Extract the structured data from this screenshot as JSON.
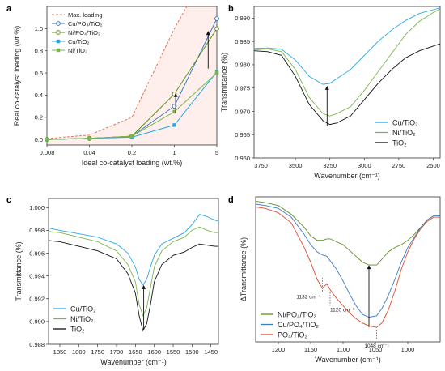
{
  "chart_data": [
    {
      "panel": "a",
      "type": "line",
      "xlabel": "Ideal co-catalyst loading (wt.%)",
      "ylabel": "Real co-catalyst loading (wt.%)",
      "x_scale": "log",
      "xlim": [
        0.008,
        5
      ],
      "ylim": [
        -0.05,
        1.2
      ],
      "xticks": [
        "0.008",
        "0.04",
        "0.2",
        "1",
        "5"
      ],
      "yticks": [
        "0.0",
        "0.2",
        "0.4",
        "0.6",
        "0.8",
        "1.0"
      ],
      "x": [
        0.008,
        0.04,
        0.2,
        1,
        5
      ],
      "series": [
        {
          "name": "Max. loading",
          "x": [
            0.008,
            0.04,
            0.2,
            1,
            1.6
          ],
          "values": [
            0.008,
            0.04,
            0.2,
            1.0,
            1.2
          ],
          "color": "#f07052",
          "style": "dashed",
          "marker": "none"
        },
        {
          "name": "Cu/PO₄/TiO₂",
          "values": [
            0.0,
            0.01,
            0.03,
            0.3,
            1.09
          ],
          "color": "#3a7cc7",
          "marker": "circle-open"
        },
        {
          "name": "Ni/PO₄/TiO₂",
          "values": [
            0.0,
            0.01,
            0.03,
            0.41,
            1.0
          ],
          "color": "#5f8f1f",
          "marker": "circle-open"
        },
        {
          "name": "Cu/TiO₂",
          "values": [
            0.0,
            0.01,
            0.02,
            0.13,
            0.61
          ],
          "color": "#2aa7e6",
          "marker": "square"
        },
        {
          "name": "Ni/TiO₂",
          "values": [
            0.0,
            0.01,
            0.03,
            0.25,
            0.6
          ],
          "color": "#7ab648",
          "marker": "square"
        }
      ],
      "legend": "top-left"
    },
    {
      "panel": "b",
      "type": "line",
      "xlabel": "Wavenumber (cm⁻¹)",
      "ylabel": "Transmittance (%)",
      "xlim": [
        3800,
        2450
      ],
      "ylim": [
        0.96,
        0.9925
      ],
      "xticks": [
        "3750",
        "3500",
        "3250",
        "3000",
        "2750",
        "2500"
      ],
      "yticks": [
        "0.960",
        "0.965",
        "0.970",
        "0.975",
        "0.980",
        "0.985",
        "0.990"
      ],
      "x": [
        3800,
        3700,
        3600,
        3500,
        3400,
        3300,
        3250,
        3200,
        3100,
        3000,
        2900,
        2800,
        2700,
        2600,
        2500,
        2450
      ],
      "series": [
        {
          "name": "Cu/TiO₂",
          "values": [
            0.9835,
            0.9836,
            0.9833,
            0.981,
            0.9775,
            0.9758,
            0.976,
            0.977,
            0.979,
            0.982,
            0.985,
            0.9875,
            0.9895,
            0.991,
            0.9918,
            0.9922
          ],
          "color": "#2aa7e6"
        },
        {
          "name": "Ni/TiO₂",
          "values": [
            0.9832,
            0.9834,
            0.9828,
            0.979,
            0.973,
            0.9695,
            0.969,
            0.9695,
            0.971,
            0.9745,
            0.9785,
            0.9825,
            0.9865,
            0.9893,
            0.9912,
            0.992
          ],
          "color": "#7ab648"
        },
        {
          "name": "TiO₂",
          "values": [
            0.983,
            0.9828,
            0.982,
            0.9775,
            0.9715,
            0.968,
            0.9672,
            0.9675,
            0.969,
            0.9725,
            0.976,
            0.979,
            0.9815,
            0.983,
            0.984,
            0.9845
          ],
          "color": "#111111"
        }
      ],
      "legend": "bottom-right"
    },
    {
      "panel": "c",
      "type": "line",
      "xlabel": "Wavenumber (cm⁻¹)",
      "ylabel": "Transmittance (%)",
      "xlim": [
        1880,
        1430
      ],
      "ylim": [
        0.988,
        1.0008
      ],
      "xticks": [
        "1850",
        "1800",
        "1750",
        "1700",
        "1650",
        "1600",
        "1550",
        "1500",
        "1450"
      ],
      "yticks": [
        "0.988",
        "0.990",
        "0.992",
        "0.994",
        "0.996",
        "0.998",
        "1.000"
      ],
      "x": [
        1880,
        1850,
        1800,
        1750,
        1700,
        1670,
        1650,
        1640,
        1630,
        1620,
        1610,
        1600,
        1580,
        1550,
        1520,
        1500,
        1480,
        1460,
        1440,
        1430
      ],
      "series": [
        {
          "name": "Cu/TiO₂",
          "values": [
            0.9982,
            0.998,
            0.9977,
            0.9974,
            0.9968,
            0.996,
            0.9948,
            0.9937,
            0.9932,
            0.9937,
            0.9948,
            0.9958,
            0.9968,
            0.9973,
            0.9978,
            0.9985,
            0.9994,
            0.9992,
            0.9989,
            0.9988
          ],
          "color": "#2aa7e6"
        },
        {
          "name": "Ni/TiO₂",
          "values": [
            0.9979,
            0.9978,
            0.9974,
            0.997,
            0.9962,
            0.995,
            0.9935,
            0.9915,
            0.9905,
            0.9912,
            0.993,
            0.9948,
            0.9962,
            0.997,
            0.9974,
            0.998,
            0.9983,
            0.998,
            0.9978,
            0.9978
          ],
          "color": "#7ab648"
        },
        {
          "name": "TiO₂",
          "values": [
            0.9971,
            0.997,
            0.9966,
            0.9962,
            0.9955,
            0.9942,
            0.9925,
            0.9905,
            0.9892,
            0.9898,
            0.9915,
            0.9935,
            0.995,
            0.9958,
            0.9961,
            0.9965,
            0.9968,
            0.9967,
            0.9966,
            0.9966
          ],
          "color": "#111111"
        }
      ],
      "legend": "bottom-left"
    },
    {
      "panel": "d",
      "type": "line",
      "xlabel": "Wavenumber (cm⁻¹)",
      "ylabel": "ΔTransmittance (%)",
      "xlim": [
        1235,
        950
      ],
      "ylim": [
        0,
        1
      ],
      "xticks": [
        "1200",
        "1150",
        "1100",
        "1050",
        "1000"
      ],
      "yticks": [],
      "x": [
        1235,
        1220,
        1200,
        1180,
        1160,
        1150,
        1140,
        1132,
        1125,
        1120,
        1110,
        1100,
        1090,
        1080,
        1070,
        1060,
        1048,
        1040,
        1030,
        1020,
        1010,
        1000,
        990,
        980,
        970,
        960,
        950
      ],
      "series": [
        {
          "name": "Ni/PO₄/TiO₂",
          "values": [
            0.97,
            0.96,
            0.94,
            0.88,
            0.79,
            0.73,
            0.7,
            0.7,
            0.71,
            0.71,
            0.69,
            0.67,
            0.63,
            0.59,
            0.55,
            0.53,
            0.53,
            0.57,
            0.62,
            0.65,
            0.67,
            0.7,
            0.74,
            0.79,
            0.84,
            0.87,
            0.87
          ],
          "color": "#5f8f1f"
        },
        {
          "name": "Cu/PO₄/TiO₂",
          "values": [
            0.95,
            0.94,
            0.92,
            0.86,
            0.74,
            0.67,
            0.62,
            0.6,
            0.59,
            0.56,
            0.5,
            0.42,
            0.33,
            0.25,
            0.19,
            0.17,
            0.18,
            0.23,
            0.32,
            0.43,
            0.55,
            0.65,
            0.72,
            0.79,
            0.84,
            0.87,
            0.87
          ],
          "color": "#3a7cc7"
        },
        {
          "name": "PO₄/TiO₂",
          "values": [
            0.93,
            0.92,
            0.89,
            0.82,
            0.65,
            0.55,
            0.43,
            0.37,
            0.4,
            0.36,
            0.3,
            0.25,
            0.2,
            0.16,
            0.13,
            0.11,
            0.1,
            0.13,
            0.22,
            0.35,
            0.5,
            0.62,
            0.71,
            0.78,
            0.83,
            0.86,
            0.86
          ],
          "color": "#e04a30"
        }
      ],
      "annotations": [
        "1132 cm⁻¹",
        "1120 cm⁻¹",
        "1048 cm⁻¹"
      ],
      "legend": "bottom-left"
    }
  ]
}
